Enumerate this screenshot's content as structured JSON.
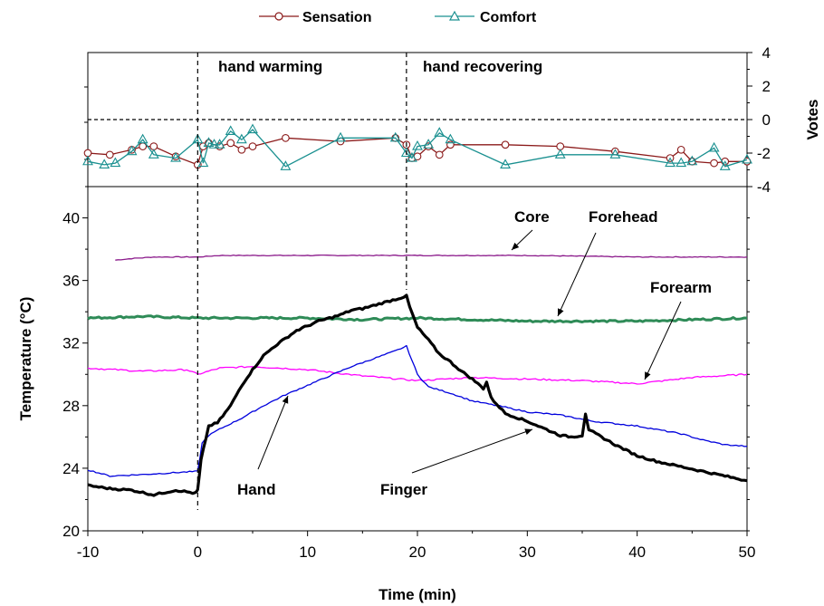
{
  "chart_data": {
    "type": "line",
    "legend": {
      "placement": "top-center",
      "entries": [
        {
          "label": "Sensation",
          "color": "#8b1a1a",
          "marker": "circle"
        },
        {
          "label": "Comfort",
          "color": "#1a9090",
          "marker": "triangle"
        }
      ]
    },
    "phases": [
      "hand warming",
      "hand recovering"
    ],
    "phase_boundaries_x": [
      0,
      19
    ],
    "top_panel": {
      "ylabel": "Votes",
      "ylim": [
        -4,
        4
      ],
      "yticks": [
        "4",
        "2",
        "0",
        "-2",
        "-4"
      ],
      "zero_line": "dashed",
      "series": [
        {
          "name": "Sensation",
          "color": "#8b1a1a",
          "marker": "circle",
          "x": [
            -10,
            -8,
            -6,
            -5,
            -4,
            -2,
            0,
            0.5,
            1,
            2,
            3,
            4,
            5,
            8,
            13,
            18,
            19,
            19.5,
            20,
            21,
            22,
            23,
            28,
            33,
            38,
            43,
            44,
            45,
            47,
            48,
            50
          ],
          "y": [
            -2.0,
            -2.1,
            -1.8,
            -1.6,
            -1.6,
            -2.2,
            -2.7,
            -1.6,
            -1.4,
            -1.6,
            -1.4,
            -1.8,
            -1.6,
            -1.1,
            -1.3,
            -1.1,
            -1.5,
            -2.3,
            -2.2,
            -1.6,
            -2.1,
            -1.5,
            -1.5,
            -1.6,
            -1.9,
            -2.3,
            -1.8,
            -2.5,
            -2.6,
            -2.5,
            -2.5
          ]
        },
        {
          "name": "Comfort",
          "color": "#1a9090",
          "marker": "triangle",
          "x": [
            -10,
            -8.5,
            -7.5,
            -6,
            -5,
            -4,
            -2,
            0,
            0.5,
            1,
            1.5,
            2,
            3,
            4,
            5,
            8,
            13,
            18,
            19,
            19.5,
            20,
            21,
            22,
            23,
            28,
            33,
            38,
            43,
            44,
            45,
            47,
            48,
            50
          ],
          "y": [
            -2.5,
            -2.7,
            -2.6,
            -1.9,
            -1.2,
            -2.1,
            -2.3,
            -1.2,
            -2.6,
            -1.4,
            -1.5,
            -1.5,
            -0.7,
            -1.2,
            -0.6,
            -2.8,
            -1.1,
            -1.1,
            -2.0,
            -2.3,
            -1.6,
            -1.5,
            -0.8,
            -1.2,
            -2.7,
            -2.1,
            -2.1,
            -2.6,
            -2.6,
            -2.5,
            -1.7,
            -2.8,
            -2.4
          ]
        }
      ]
    },
    "bottom_panel": {
      "xlabel": "Time (min)",
      "ylabel": "Temperature (°C)",
      "xlim": [
        -10,
        50
      ],
      "ylim": [
        20,
        42
      ],
      "xticks": [
        "-10",
        "0",
        "10",
        "20",
        "30",
        "40",
        "50"
      ],
      "yticks": [
        "20",
        "24",
        "28",
        "32",
        "36",
        "40"
      ],
      "series": [
        {
          "name": "Core",
          "color": "#8b1a8b",
          "width": 1.3,
          "x": [
            -7.5,
            -6,
            -4,
            -2,
            0,
            2,
            5,
            8,
            10,
            20,
            30,
            40,
            50
          ],
          "y": [
            37.3,
            37.4,
            37.5,
            37.5,
            37.5,
            37.6,
            37.6,
            37.6,
            37.6,
            37.6,
            37.6,
            37.5,
            37.5
          ]
        },
        {
          "name": "Forehead",
          "color": "#2e8b57",
          "width": 3,
          "x": [
            -10,
            -5,
            0,
            5,
            10,
            15,
            20,
            25,
            30,
            35,
            40,
            45,
            50
          ],
          "y": [
            33.6,
            33.7,
            33.6,
            33.6,
            33.6,
            33.5,
            33.6,
            33.5,
            33.4,
            33.4,
            33.4,
            33.5,
            33.6
          ]
        },
        {
          "name": "Forearm",
          "color": "#ff00ff",
          "width": 1.3,
          "x": [
            -10,
            -5,
            -1,
            0,
            2,
            5,
            10,
            15,
            20,
            25,
            30,
            35,
            40,
            45,
            50
          ],
          "y": [
            30.4,
            30.2,
            30.3,
            30.0,
            30.4,
            30.5,
            30.3,
            29.9,
            29.6,
            29.8,
            29.7,
            29.6,
            29.4,
            29.8,
            30.0
          ]
        },
        {
          "name": "Hand",
          "color": "#0000dd",
          "width": 1.3,
          "x": [
            -10,
            -8,
            -5,
            0,
            0.4,
            1,
            2,
            4,
            6,
            8,
            10,
            12,
            14,
            16,
            18,
            19,
            20,
            21,
            23,
            25,
            28,
            30,
            33,
            36,
            40,
            44,
            46,
            48,
            50
          ],
          "y": [
            23.9,
            23.5,
            23.6,
            23.8,
            25.6,
            26.1,
            26.5,
            27.2,
            28.0,
            28.7,
            29.3,
            29.9,
            30.5,
            31.0,
            31.5,
            31.8,
            30.0,
            29.2,
            28.8,
            28.3,
            27.9,
            27.6,
            27.4,
            27.0,
            26.7,
            26.2,
            25.8,
            25.5,
            25.4
          ]
        },
        {
          "name": "Finger",
          "color": "#000000",
          "width": 3.2,
          "x": [
            -10,
            -8,
            -6,
            -4,
            -2,
            -0.2,
            0,
            0.3,
            1,
            1.8,
            3,
            4,
            5,
            6,
            7,
            8,
            9,
            10,
            11,
            12,
            13,
            14,
            15,
            16,
            17,
            18,
            19,
            19.3,
            20,
            21,
            22,
            23,
            24,
            25,
            26,
            26.3,
            26.7,
            28,
            30,
            32,
            33,
            34,
            35,
            35.3,
            35.6,
            36,
            38,
            40,
            42,
            44,
            46,
            48,
            50
          ],
          "y": [
            22.9,
            22.7,
            22.6,
            22.3,
            22.6,
            22.4,
            22.6,
            24.5,
            26.7,
            26.9,
            28.0,
            29.3,
            30.3,
            31.2,
            31.8,
            32.3,
            32.8,
            33.1,
            33.4,
            33.6,
            33.8,
            34.1,
            34.2,
            34.4,
            34.6,
            34.8,
            35.0,
            34.3,
            33.0,
            32.2,
            31.3,
            30.8,
            30.2,
            29.7,
            29.1,
            29.5,
            28.5,
            27.5,
            27.0,
            26.4,
            26.1,
            26.0,
            26.1,
            27.5,
            26.4,
            26.3,
            25.5,
            24.8,
            24.4,
            24.1,
            23.8,
            23.5,
            23.2
          ]
        }
      ],
      "annotations": [
        "Core",
        "Forehead",
        "Forearm",
        "Hand",
        "Finger"
      ]
    }
  }
}
